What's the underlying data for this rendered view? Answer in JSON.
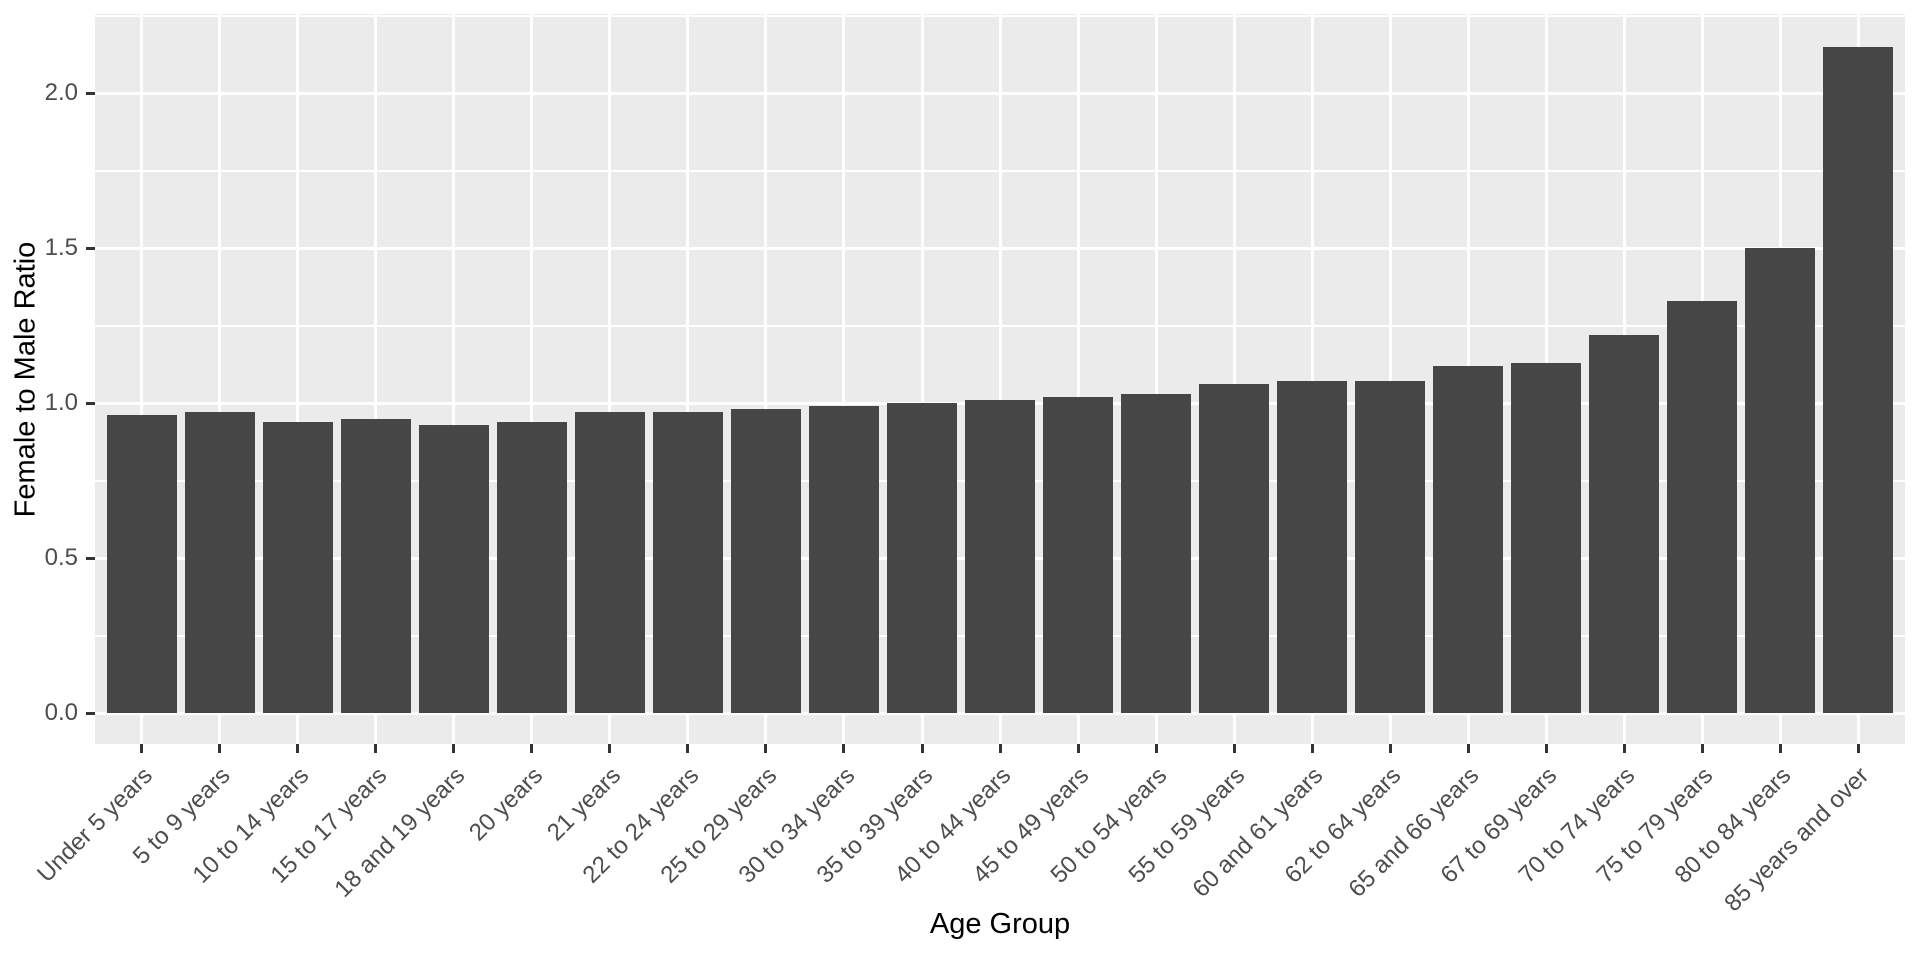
{
  "chart_data": {
    "type": "bar",
    "title": "",
    "xlabel": "Age Group",
    "ylabel": "Female to Male Ratio",
    "categories": [
      "Under 5 years",
      "5 to 9 years",
      "10 to 14 years",
      "15 to 17 years",
      "18 and 19 years",
      "20 years",
      "21 years",
      "22 to 24 years",
      "25 to 29 years",
      "30 to 34 years",
      "35 to 39 years",
      "40 to 44 years",
      "45 to 49 years",
      "50 to 54 years",
      "55 to 59 years",
      "60 and 61 years",
      "62 to 64 years",
      "65 and 66 years",
      "67 to 69 years",
      "70 to 74 years",
      "75 to 79 years",
      "80 to 84 years",
      "85 years and over"
    ],
    "values": [
      0.96,
      0.97,
      0.94,
      0.95,
      0.93,
      0.94,
      0.97,
      0.97,
      0.98,
      0.99,
      1.0,
      1.01,
      1.02,
      1.03,
      1.06,
      1.07,
      1.07,
      1.12,
      1.13,
      1.22,
      1.33,
      1.5,
      2.15
    ],
    "ylim": [
      0,
      2.26
    ],
    "yticks": [
      0,
      0.5,
      1.0,
      1.5,
      2.0
    ],
    "ytick_labels": [
      "0.0",
      "0.5",
      "1.0",
      "1.5",
      "2.0"
    ],
    "yticks_minor": [
      0.25,
      0.75,
      1.25,
      1.75,
      2.25
    ],
    "grid": true,
    "legend": false,
    "theme": {
      "bar_color": "#464646",
      "panel_background": "#EBEBEB",
      "gridline_color": "#FFFFFF",
      "axis_text_color": "#4D4D4D",
      "axis_title_color": "#000000",
      "tick_mark_color": "#333333"
    }
  }
}
